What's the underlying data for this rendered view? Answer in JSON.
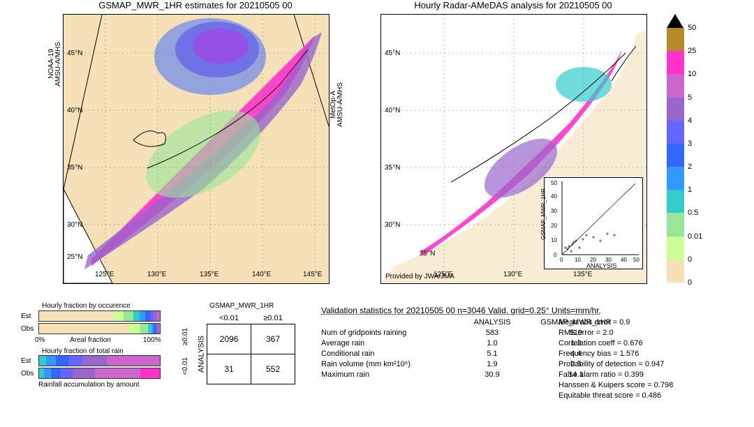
{
  "maps": {
    "left": {
      "title": "GSMAP_MWR_1HR estimates for 20210505 00",
      "xticks": [
        "125°E",
        "130°E",
        "135°E",
        "140°E",
        "145°E"
      ],
      "yticks": [
        "25°N",
        "30°N",
        "35°N",
        "40°N",
        "45°N"
      ],
      "side_labels": {
        "left_top": "NOAA-19",
        "left_bot": "AMSU-A/MHS",
        "right_top": "MetOp-A",
        "right_bot": "AMSU-A/MHS"
      },
      "bg_color": "#f5e0b7"
    },
    "right": {
      "title": "Hourly Radar-AMeDAS analysis for 20210505 00",
      "xticks": [
        "125°E",
        "130°E",
        "135°E"
      ],
      "yticks": [
        "25°N",
        "30°N",
        "35°N",
        "40°N",
        "45°N"
      ],
      "provider": "Provided by JWA/JMA",
      "bg_color": "#ffffff"
    },
    "scatter": {
      "xlabel": "ANALYSIS",
      "ylabel": "GSMAP_MWR_1HR",
      "ticks": [
        "0",
        "10",
        "20",
        "30",
        "40",
        "50"
      ],
      "xlim": [
        0,
        50
      ],
      "ylim": [
        0,
        50
      ]
    }
  },
  "colorbar": {
    "ticks": [
      "50",
      "25",
      "10",
      "5",
      "4",
      "3",
      "2",
      "1",
      "0.5",
      "0.01",
      "0"
    ],
    "colors": [
      "#b88a2a",
      "#ff33cc",
      "#cc66cc",
      "#9966cc",
      "#6666ff",
      "#3366ff",
      "#3399ff",
      "#33cccc",
      "#99e699",
      "#ccff99",
      "#f5e0b7"
    ]
  },
  "fraction_bars": {
    "title1": "Hourly fraction by occurence",
    "title2": "Hourly fraction of total rain",
    "caption3": "Rainfall accumulation by amount",
    "axis": "Areal fraction",
    "axis_left": "0%",
    "axis_right": "100%",
    "est_label": "Est",
    "obs_label": "Obs",
    "bar1_est": [
      [
        "#f5e0b7",
        62
      ],
      [
        "#ccff99",
        8
      ],
      [
        "#99e699",
        8
      ],
      [
        "#33cccc",
        5
      ],
      [
        "#3399ff",
        5
      ],
      [
        "#3366ff",
        4
      ],
      [
        "#6666ff",
        3
      ],
      [
        "#9966cc",
        3
      ],
      [
        "#cc66cc",
        2
      ]
    ],
    "bar1_obs": [
      [
        "#f5e0b7",
        74
      ],
      [
        "#ccff99",
        10
      ],
      [
        "#99e699",
        6
      ],
      [
        "#33cccc",
        3
      ],
      [
        "#3399ff",
        2
      ],
      [
        "#3366ff",
        2
      ],
      [
        "#9966cc",
        2
      ],
      [
        "#cc66cc",
        1
      ]
    ],
    "bar2_est": [
      [
        "#33cccc",
        6
      ],
      [
        "#3399ff",
        8
      ],
      [
        "#3366ff",
        10
      ],
      [
        "#6666ff",
        12
      ],
      [
        "#9966cc",
        20
      ],
      [
        "#cc66cc",
        44
      ]
    ],
    "bar2_obs": [
      [
        "#33cccc",
        4
      ],
      [
        "#3399ff",
        6
      ],
      [
        "#3366ff",
        8
      ],
      [
        "#6666ff",
        10
      ],
      [
        "#9966cc",
        18
      ],
      [
        "#cc66cc",
        38
      ],
      [
        "#ff33cc",
        16
      ]
    ]
  },
  "contingency": {
    "title": "GSMAP_MWR_1HR",
    "col_labels": [
      "<0.01",
      "≥0.01"
    ],
    "row_title": "ANALYSIS",
    "row_labels": [
      "≥0.01",
      "<0.01"
    ],
    "cells": [
      [
        "2096",
        "367"
      ],
      [
        "31",
        "552"
      ]
    ]
  },
  "validation": {
    "title": "Validation statistics for 20210505 00  n=3046 Valid. grid=0.25° Units=mm/hr.",
    "col_headers": [
      "ANALYSIS",
      "GSMAP_MWR_1HR"
    ],
    "rows": [
      {
        "label": "Num of gridpoints raining",
        "a": "583",
        "b": "919"
      },
      {
        "label": "Average rain",
        "a": "1.0",
        "b": "1.3"
      },
      {
        "label": "Conditional rain",
        "a": "5.1",
        "b": "4.4"
      },
      {
        "label": "Rain volume (mm km²10⁶)",
        "a": "1.9",
        "b": "2.5"
      },
      {
        "label": "Maximum rain",
        "a": "30.9",
        "b": "14.1"
      }
    ],
    "metrics": [
      {
        "label": "Mean abs error = ",
        "v": "0.9"
      },
      {
        "label": "RMS error = ",
        "v": "2.0"
      },
      {
        "label": "Correlation coeff = ",
        "v": "0.676"
      },
      {
        "label": "Frequency bias = ",
        "v": "1.576"
      },
      {
        "label": "Probability of detection = ",
        "v": "0.947"
      },
      {
        "label": "False alarm ratio = ",
        "v": "0.399"
      },
      {
        "label": "Hanssen & Kuipers score = ",
        "v": "0.798"
      },
      {
        "label": "Equitable threat score = ",
        "v": "0.486"
      }
    ]
  },
  "style": {
    "grid_color": "#999999",
    "coast_color": "#000000",
    "text_color": "#000000",
    "title_fontsize": 13,
    "label_fontsize": 10
  }
}
